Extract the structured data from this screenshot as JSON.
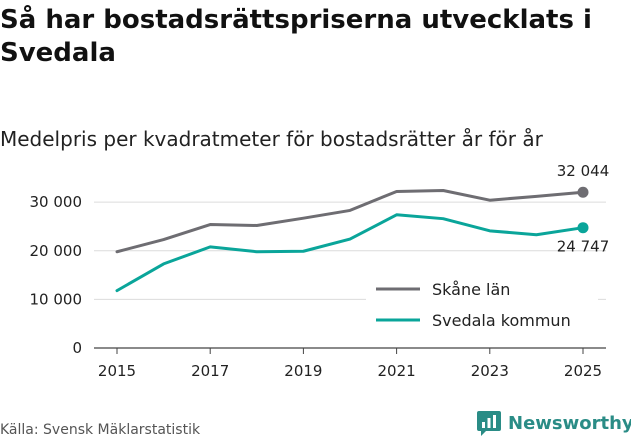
{
  "title": "Så har bostadsrättspriserna utvecklats i Svedala",
  "subtitle": "Medelpris per kvadratmeter för bostadsrätter år för år",
  "source": "Källa: Svensk Mäklarstatistik",
  "brand": {
    "name": "Newsworthy",
    "logo_icon": "newsworthy-logo-icon"
  },
  "colors": {
    "series1": "#6e6d72",
    "series2": "#0aa59a",
    "grid": "#dcdcdc",
    "axis": "#444444",
    "brand": "#2a8c86"
  },
  "chart_data": {
    "type": "line",
    "title": "Så har bostadsrättspriserna utvecklats i Svedala",
    "subtitle": "Medelpris per kvadratmeter för bostadsrätter år för år",
    "xlabel": "",
    "ylabel": "",
    "x": [
      2015,
      2016,
      2017,
      2018,
      2019,
      2020,
      2021,
      2022,
      2023,
      2024,
      2025
    ],
    "xlim": [
      2015,
      2025
    ],
    "ylim": [
      0,
      32500
    ],
    "x_ticks": [
      2015,
      2017,
      2019,
      2021,
      2023,
      2025
    ],
    "x_tick_labels": [
      "2015",
      "2017",
      "2019",
      "2021",
      "2023",
      "2025"
    ],
    "y_ticks": [
      0,
      10000,
      20000,
      30000
    ],
    "y_tick_labels": [
      "0",
      "10 000",
      "20 000",
      "30 000"
    ],
    "grid": true,
    "legend_position": "bottom-right",
    "series": [
      {
        "name": "Skåne län",
        "values": [
          19800,
          22300,
          25400,
          25200,
          26700,
          28300,
          32200,
          32400,
          30400,
          31200,
          32044
        ],
        "end_label": "32 044"
      },
      {
        "name": "Svedala kommun",
        "values": [
          11800,
          17300,
          20800,
          19800,
          19900,
          22400,
          27400,
          26600,
          24100,
          23300,
          24747
        ],
        "end_label": "24 747"
      }
    ]
  }
}
